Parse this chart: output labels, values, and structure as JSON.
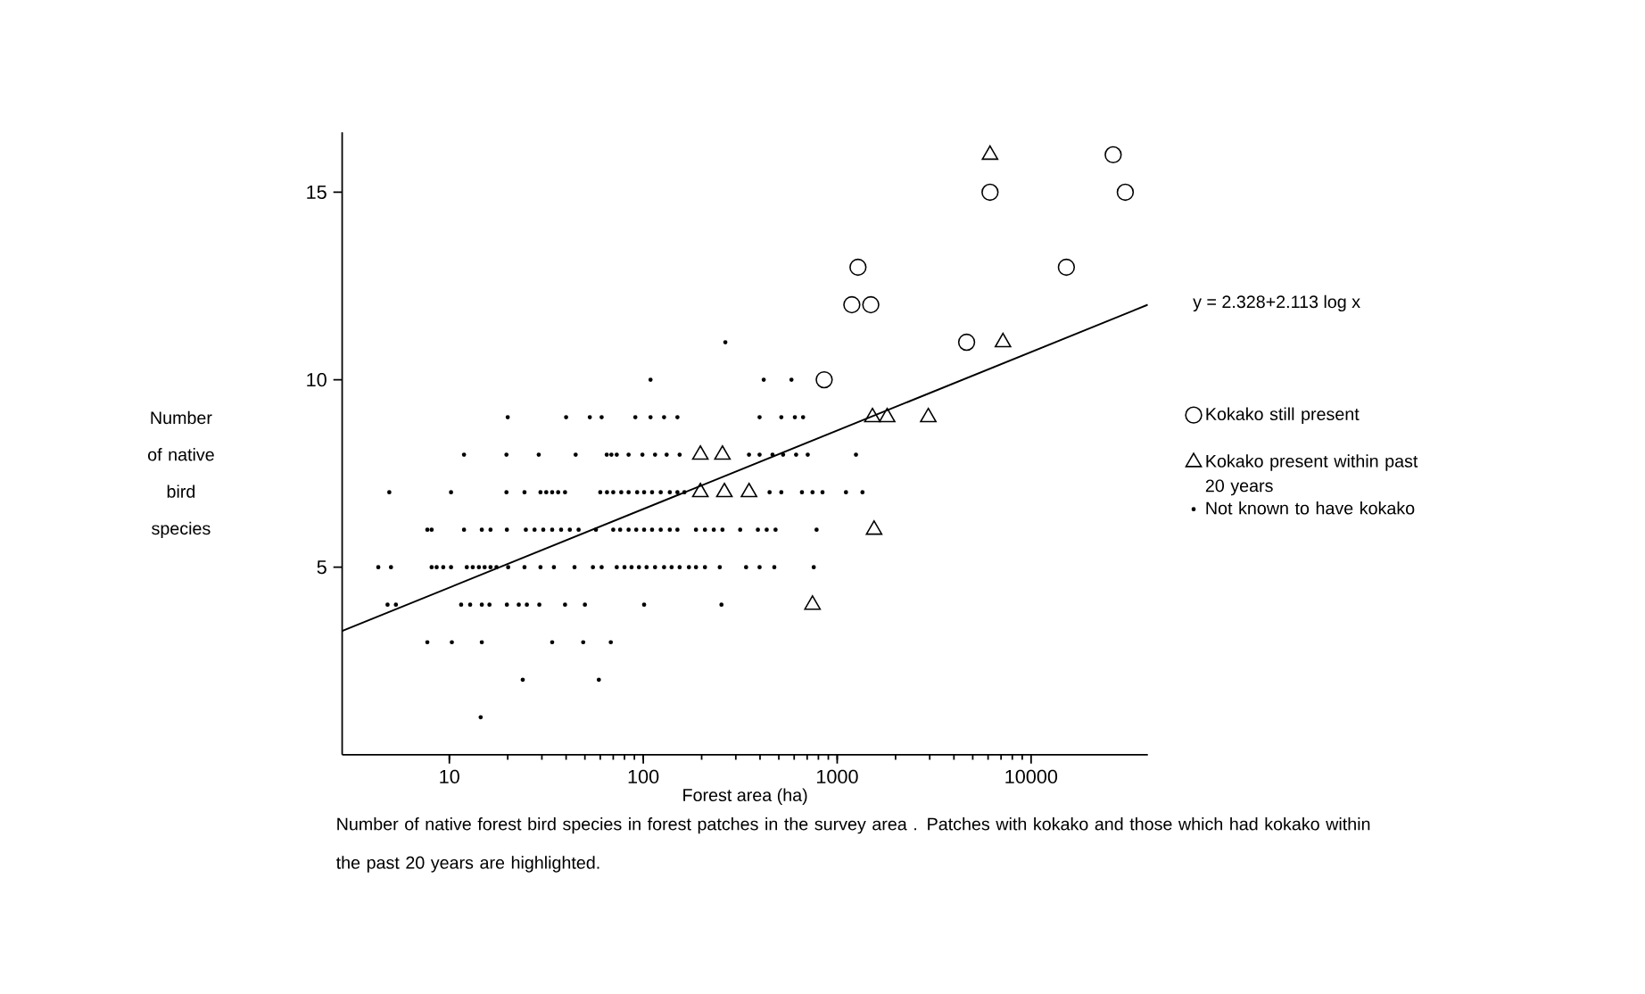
{
  "chart_data": {
    "type": "scatter",
    "log": "x",
    "xlabel": "Forest area (ha)",
    "ylabel": "Number of native bird species",
    "xlim": [
      2.8,
      40000
    ],
    "ylim": [
      0,
      16.6
    ],
    "xticks": [
      10,
      100,
      1000,
      10000
    ],
    "yticks": [
      5,
      10,
      15
    ],
    "legend": "right",
    "annotations": [
      "y = 2.328+2.113 log x",
      "Number of native forest bird species in forest patches in the survey area . Patches with kokako and those which had kokako within the past 20 years are highlighted."
    ],
    "series": [
      {
        "name": "Kokako still present",
        "color": "#000000",
        "marker": "circle",
        "x": [
          857,
          1280,
          1190,
          1490,
          6140,
          4650,
          15200,
          26500,
          30600
        ],
        "values": [
          10,
          13,
          12,
          12,
          15,
          11,
          13,
          16,
          15
        ]
      },
      {
        "name": "Kokako present within past 20 years",
        "color": "#000000",
        "marker": "triangle",
        "x": [
          6140,
          7160,
          1520,
          1810,
          2950,
          197,
          256,
          197,
          262,
          351,
          1550,
          746
        ],
        "values": [
          16,
          11,
          9,
          9,
          9,
          8,
          8,
          7,
          7,
          7,
          6,
          4
        ]
      },
      {
        "name": "Not known to have kokako",
        "color": "#000000",
        "marker": "circle",
        "x": [
          265,
          109,
          418,
          581,
          20,
          40,
          53,
          61,
          91,
          109,
          128,
          150,
          398,
          515,
          605,
          667,
          11.9,
          19.7,
          28.9,
          44.8,
          64.8,
          68.5,
          73,
          84,
          99,
          115,
          132,
          154,
          351,
          398,
          464,
          526,
          614,
          705,
          1250,
          4.9,
          10.2,
          19.7,
          24.4,
          29.5,
          31.6,
          33.9,
          36.4,
          39.5,
          60,
          65,
          70,
          77,
          84,
          93,
          101,
          111,
          123,
          137,
          150,
          163,
          448,
          515,
          658,
          746,
          840,
          1110,
          1350,
          7.7,
          8.1,
          11.9,
          14.7,
          16.3,
          19.8,
          24.8,
          27.5,
          30.5,
          33.9,
          37.7,
          41.8,
          46.4,
          57,
          70,
          76,
          84,
          92,
          101,
          111,
          123,
          137,
          150,
          187,
          208,
          231,
          256,
          316,
          390,
          433,
          481,
          783,
          4.3,
          5.0,
          8.1,
          8.6,
          9.3,
          10.2,
          12.3,
          13.2,
          14.2,
          15.2,
          16.3,
          17.5,
          20.1,
          24.4,
          29.5,
          34.6,
          44.2,
          55,
          61,
          73,
          80,
          87,
          95,
          104,
          115,
          128,
          140,
          154,
          172,
          187,
          208,
          248,
          339,
          398,
          474,
          757,
          4.8,
          5.3,
          11.5,
          12.8,
          14.7,
          16.1,
          19.8,
          22.8,
          25.1,
          29.1,
          39.5,
          50,
          101,
          253,
          7.7,
          10.3,
          14.7,
          33.9,
          49,
          68,
          23.9,
          59,
          14.5
        ],
        "values": [
          11,
          10,
          10,
          10,
          9,
          9,
          9,
          9,
          9,
          9,
          9,
          9,
          9,
          9,
          9,
          9,
          8,
          8,
          8,
          8,
          8,
          8,
          8,
          8,
          8,
          8,
          8,
          8,
          8,
          8,
          8,
          8,
          8,
          8,
          8,
          7,
          7,
          7,
          7,
          7,
          7,
          7,
          7,
          7,
          7,
          7,
          7,
          7,
          7,
          7,
          7,
          7,
          7,
          7,
          7,
          7,
          7,
          7,
          7,
          7,
          7,
          7,
          7,
          6,
          6,
          6,
          6,
          6,
          6,
          6,
          6,
          6,
          6,
          6,
          6,
          6,
          6,
          6,
          6,
          6,
          6,
          6,
          6,
          6,
          6,
          6,
          6,
          6,
          6,
          6,
          6,
          6,
          6,
          6,
          6,
          5,
          5,
          5,
          5,
          5,
          5,
          5,
          5,
          5,
          5,
          5,
          5,
          5,
          5,
          5,
          5,
          5,
          5,
          5,
          5,
          5,
          5,
          5,
          5,
          5,
          5,
          5,
          5,
          5,
          5,
          5,
          5,
          5,
          5,
          5,
          5,
          4,
          4,
          4,
          4,
          4,
          4,
          4,
          4,
          4,
          4,
          4,
          4,
          4,
          4,
          3,
          3,
          3,
          3,
          3,
          3,
          2,
          2,
          1
        ]
      },
      {
        "type": "line",
        "color": "#000000",
        "marker": "none",
        "x": [
          2.8,
          40000
        ],
        "values": [
          3.3,
          12.0
        ]
      }
    ]
  }
}
